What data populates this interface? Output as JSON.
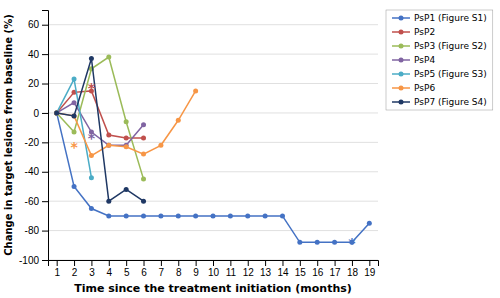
{
  "chart_data": {
    "type": "line",
    "xlabel": "Time since the treatment initiation (months)",
    "ylabel": "Change in target lesions from baseline (%)",
    "xlim": [
      0.5,
      19.5
    ],
    "ylim": [
      -100,
      70
    ],
    "xticks": [
      1,
      2,
      3,
      4,
      5,
      6,
      7,
      8,
      9,
      10,
      11,
      12,
      13,
      14,
      15,
      16,
      17,
      18,
      19
    ],
    "yticks": [
      -100,
      -80,
      -60,
      -40,
      -20,
      0,
      20,
      40,
      60
    ],
    "grid": true,
    "legend": "upper right",
    "marker": "circle",
    "series": [
      {
        "name": "PsP1 (Figure S1)",
        "color": "#4472C4",
        "x": [
          1,
          2,
          3,
          4,
          5,
          6,
          7,
          8,
          9,
          10,
          11,
          12,
          13,
          14,
          15,
          16,
          17,
          18,
          19
        ],
        "values": [
          0,
          -50,
          -65,
          -70,
          -70,
          -70,
          -70,
          -70,
          -70,
          -70,
          -70,
          -70,
          -70,
          -70,
          -88,
          -88,
          -88,
          -88,
          -75
        ]
      },
      {
        "name": "PsP2",
        "color": "#C0504D",
        "x": [
          1,
          2,
          3,
          4,
          5,
          6
        ],
        "values": [
          0,
          14,
          15,
          -15,
          -17,
          -17
        ]
      },
      {
        "name": "PsP3 (Figure S2)",
        "color": "#9BBB59",
        "x": [
          1,
          2,
          3,
          4,
          5,
          6
        ],
        "values": [
          0,
          -13,
          30,
          38,
          -6,
          -45
        ]
      },
      {
        "name": "PsP4",
        "color": "#8064A2",
        "x": [
          1,
          2,
          3,
          4,
          5,
          6
        ],
        "values": [
          0,
          7,
          -13,
          -22,
          -22,
          -8
        ]
      },
      {
        "name": "PsP5 (Figure S3)",
        "color": "#4BACC6",
        "x": [
          1,
          2,
          3
        ],
        "values": [
          0,
          23,
          -44
        ]
      },
      {
        "name": "PsP6",
        "color": "#F79646",
        "x": [
          1,
          2,
          3,
          4,
          5,
          6,
          7,
          8,
          9
        ],
        "values": [
          0,
          -2,
          -29,
          -22,
          -23,
          -28,
          -22,
          -5,
          15
        ]
      },
      {
        "name": "PsP7 (Figure S4)",
        "color": "#1F3864",
        "x": [
          1,
          2,
          3,
          4,
          5,
          6
        ],
        "values": [
          0,
          -2,
          37,
          -60,
          -52,
          -60
        ]
      }
    ],
    "annotations": [
      {
        "text": "*",
        "x": 3,
        "y": 20,
        "color": "#C0504D"
      },
      {
        "text": "*",
        "x": 3,
        "y": -14,
        "color": "#8064A2"
      },
      {
        "text": "*",
        "x": 2,
        "y": -20,
        "color": "#F79646"
      },
      {
        "text": "*",
        "x": 18,
        "y": -85,
        "color": "#4472C4"
      }
    ]
  }
}
